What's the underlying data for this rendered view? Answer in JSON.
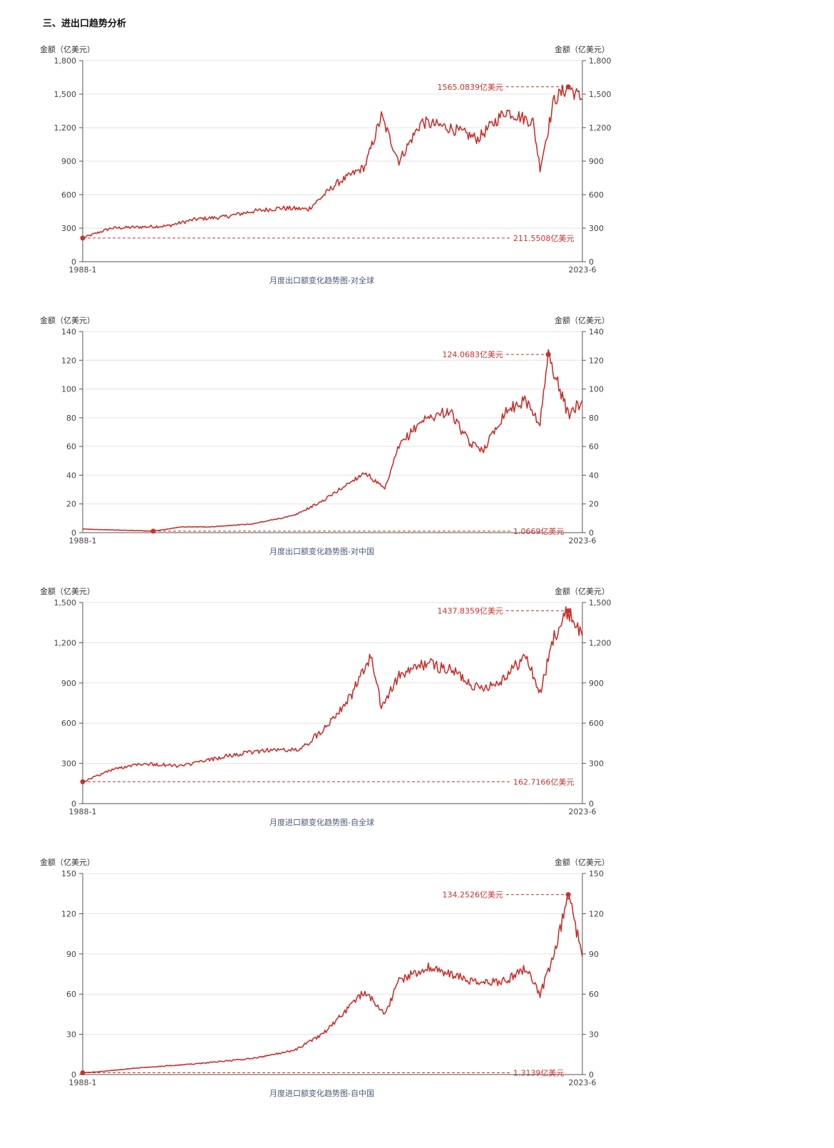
{
  "section_title": "三、进出口趋势分析",
  "chart_data": [
    {
      "type": "line",
      "title": "月度出口额变化趋势图-对全球",
      "ylabel": "金额（亿美元）",
      "ylim": [
        0,
        1800
      ],
      "yticks": [
        0,
        300,
        600,
        900,
        1200,
        1500,
        1800
      ],
      "ytick_labels": [
        "0",
        "300",
        "600",
        "900",
        "1,200",
        "1,500",
        "1,800"
      ],
      "x_start": "1988-1",
      "x_end": "2023-6",
      "series": [
        {
          "x": [
            "1988-1",
            "1990-1",
            "1992-1",
            "1994-1",
            "1996-1",
            "1998-1",
            "2000-1",
            "2002-1",
            "2004-1",
            "2006-1",
            "2008-1",
            "2009-3",
            "2010-6",
            "2012-1",
            "2014-1",
            "2016-1",
            "2018-1",
            "2019-12",
            "2020-6",
            "2021-6",
            "2022-6",
            "2023-6"
          ],
          "values": [
            211.5508,
            300,
            310,
            320,
            380,
            400,
            450,
            480,
            470,
            700,
            850,
            1300,
            900,
            1250,
            1200,
            1100,
            1350,
            1250,
            840,
            1450,
            1565.0839,
            1450
          ]
        }
      ],
      "max_label": "1565.0839亿美元",
      "max_value": 1565.0839,
      "max_date": "2022-6",
      "min_label": "211.5508亿美元",
      "min_value": 211.5508,
      "min_date": "1988-1",
      "line_color": "#c9312c"
    },
    {
      "type": "line",
      "title": "月度出口额变化趋势图-对中国",
      "ylabel": "金额（亿美元）",
      "ylim": [
        0,
        140
      ],
      "yticks": [
        0,
        20,
        40,
        60,
        80,
        100,
        120,
        140
      ],
      "ytick_labels": [
        "0",
        "20",
        "40",
        "60",
        "80",
        "100",
        "120",
        "140"
      ],
      "x_start": "1988-1",
      "x_end": "2023-6",
      "series": [
        {
          "x": [
            "1988-1",
            "1993-1",
            "1995-1",
            "1997-1",
            "2000-1",
            "2003-1",
            "2005-1",
            "2008-1",
            "2009-6",
            "2010-6",
            "2012-1",
            "2014-1",
            "2015-6",
            "2016-6",
            "2018-1",
            "2019-6",
            "2020-6",
            "2021-1",
            "2022-6",
            "2023-6"
          ],
          "values": [
            2.5,
            1.0669,
            4,
            4,
            6,
            12,
            22,
            42,
            30,
            60,
            78,
            85,
            62,
            58,
            85,
            92,
            76,
            124.0683,
            82,
            92
          ]
        }
      ],
      "max_label": "124.0683亿美元",
      "max_value": 124.0683,
      "max_date": "2021-1",
      "min_label": "1.0669亿美元",
      "min_value": 1.0669,
      "min_date": "1993-1",
      "line_color": "#c9312c"
    },
    {
      "type": "line",
      "title": "月度进口额变化趋势图-自全球",
      "ylabel": "金额（亿美元）",
      "ylim": [
        0,
        1500
      ],
      "yticks": [
        0,
        300,
        600,
        900,
        1200,
        1500
      ],
      "ytick_labels": [
        "0",
        "300",
        "600",
        "900",
        "1,200",
        "1,500"
      ],
      "x_start": "1988-1",
      "x_end": "2023-6",
      "series": [
        {
          "x": [
            "1988-1",
            "1990-1",
            "1992-1",
            "1995-1",
            "1998-1",
            "2001-1",
            "2003-6",
            "2005-1",
            "2007-1",
            "2008-6",
            "2009-3",
            "2010-6",
            "2012-6",
            "2014-6",
            "2016-1",
            "2017-6",
            "2019-6",
            "2020-6",
            "2021-6",
            "2022-6",
            "2023-6"
          ],
          "values": [
            162.7166,
            250,
            300,
            280,
            350,
            400,
            400,
            550,
            800,
            1100,
            720,
            950,
            1050,
            980,
            860,
            900,
            1100,
            820,
            1250,
            1437.8359,
            1250
          ]
        }
      ],
      "max_label": "1437.8359亿美元",
      "max_value": 1437.8359,
      "max_date": "2022-6",
      "min_label": "162.7166亿美元",
      "min_value": 162.7166,
      "min_date": "1988-1",
      "line_color": "#c9312c"
    },
    {
      "type": "line",
      "title": "月度进口额变化趋势图-自中国",
      "ylabel": "金额（亿美元）",
      "ylim": [
        0,
        150
      ],
      "yticks": [
        0,
        30,
        60,
        90,
        120,
        150
      ],
      "ytick_labels": [
        "0",
        "30",
        "60",
        "90",
        "120",
        "150"
      ],
      "x_start": "1988-1",
      "x_end": "2023-6",
      "series": [
        {
          "x": [
            "1988-1",
            "1989-1",
            "1992-1",
            "1996-1",
            "2000-1",
            "2003-1",
            "2005-1",
            "2008-1",
            "2009-6",
            "2010-6",
            "2012-6",
            "2014-1",
            "2016-1",
            "2018-1",
            "2019-6",
            "2020-6",
            "2021-6",
            "2022-6",
            "2023-6"
          ],
          "values": [
            1.3139,
            2,
            5,
            8,
            12,
            18,
            30,
            62,
            45,
            70,
            80,
            75,
            68,
            70,
            80,
            60,
            88,
            134.2526,
            88
          ]
        }
      ],
      "max_label": "134.2526亿美元",
      "max_value": 134.2526,
      "max_date": "2022-6",
      "min_label": "1.3139亿美元",
      "min_value": 1.3139,
      "min_date": "1988-1",
      "line_color": "#c9312c"
    }
  ]
}
